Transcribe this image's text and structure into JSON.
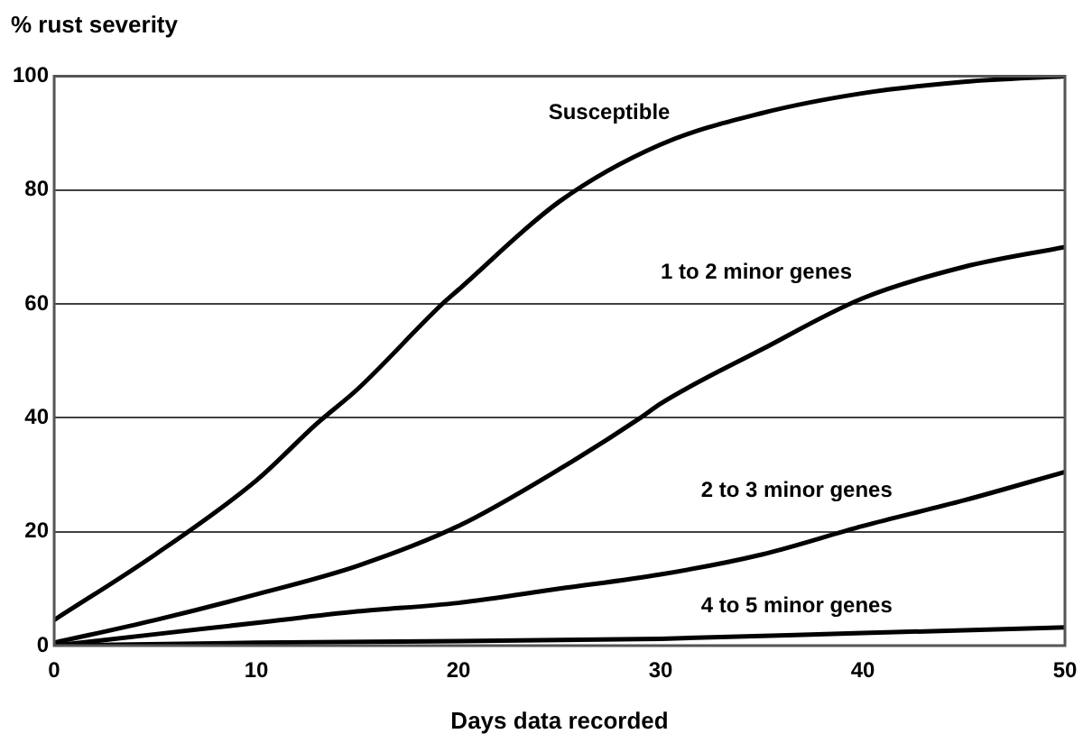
{
  "chart_data": {
    "type": "line",
    "ylabel": "% rust severity",
    "xlabel": "Days data recorded",
    "xlim": [
      0,
      50
    ],
    "xticks": [
      0,
      10,
      20,
      30,
      40,
      50
    ],
    "ylim": [
      0,
      100
    ],
    "yticks": [
      0,
      20,
      40,
      60,
      80,
      100
    ],
    "grid": "y",
    "legend": false,
    "marker": "none",
    "line_style": "solid",
    "series": [
      {
        "name": "Susceptible",
        "color": "#000000",
        "x": [
          0,
          5,
          10,
          13,
          15,
          19.2,
          20,
          25,
          30,
          35,
          40,
          45,
          50
        ],
        "values": [
          4.5,
          16,
          29,
          39,
          45,
          60,
          62.5,
          78,
          88,
          93.5,
          97,
          99,
          100
        ]
      },
      {
        "name": "1 to 2 minor genes",
        "color": "#000000",
        "x": [
          0,
          5,
          10,
          15,
          20,
          25,
          29,
          30,
          35,
          40,
          45,
          50
        ],
        "values": [
          0.5,
          4.5,
          9,
          14,
          21,
          31,
          40,
          42.5,
          52,
          61,
          66.5,
          70
        ]
      },
      {
        "name": "2 to 3 minor genes",
        "color": "#000000",
        "x": [
          0,
          5,
          10,
          15,
          20,
          25,
          30,
          35,
          40,
          45,
          50
        ],
        "values": [
          0,
          2,
          4,
          6,
          7.5,
          10,
          12.5,
          16,
          21,
          25.5,
          30.5
        ]
      },
      {
        "name": "4 to 5 minor genes",
        "color": "#000000",
        "x": [
          0,
          10,
          20,
          30,
          40,
          50
        ],
        "values": [
          0,
          0.5,
          0.8,
          1.2,
          2.2,
          3.2
        ]
      }
    ]
  }
}
